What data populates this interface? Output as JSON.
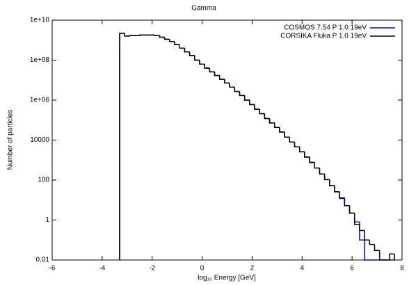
{
  "chart_data": {
    "type": "histogram",
    "title": "Gamma",
    "xlabel": "log₁₀ Energy [GeV]",
    "ylabel": "Number of particles",
    "log_y": true,
    "legend": "top-right",
    "bins": [
      -3.3,
      -3.1,
      -2.9,
      -2.7,
      -2.5,
      -2.3,
      -2.1,
      -1.9,
      -1.7,
      -1.5,
      -1.3,
      -1.1,
      -0.9,
      -0.7,
      -0.5,
      -0.3,
      -0.1,
      0.1,
      0.3,
      0.5,
      0.7,
      0.9,
      1.1,
      1.3,
      1.5,
      1.7,
      1.9,
      2.1,
      2.3,
      2.5,
      2.7,
      2.9,
      3.1,
      3.3,
      3.5,
      3.7,
      3.9,
      4.1,
      4.3,
      4.5,
      4.7,
      4.9,
      5.1,
      5.3,
      5.5,
      5.7,
      5.9,
      6.1,
      6.3,
      6.5,
      6.7,
      6.9,
      7.1,
      7.3,
      7.5,
      7.7
    ],
    "series": [
      {
        "name": "COSMOS 7.54 P 1.0 19eV",
        "color": "#0000ff",
        "values": [
          2200000000.0,
          1600000000.0,
          1700000000.0,
          1700000000.0,
          1800000000.0,
          1800000000.0,
          1800000000.0,
          1700000000.0,
          1400000000.0,
          1100000000.0,
          850000000.0,
          600000000.0,
          400000000.0,
          260000000.0,
          170000000.0,
          100000000.0,
          63000000.0,
          40000000.0,
          26000000.0,
          17000000.0,
          11000000.0,
          7200000.0,
          4500000.0,
          2700000.0,
          1700000.0,
          1000000.0,
          600000.0,
          350000.0,
          210000.0,
          120000.0,
          72000.0,
          43000.0,
          25000.0,
          14000.0,
          8000,
          4600,
          2600,
          1400,
          780,
          400,
          200,
          105,
          52,
          26,
          13,
          5.2,
          2.2,
          0.8,
          0.1,
          0,
          0,
          0,
          0,
          0,
          0
        ]
      },
      {
        "name": "CORSIKA Fluka P 1.0 19eV",
        "color": "#000000",
        "values": [
          2200000000.0,
          1600000000.0,
          1700000000.0,
          1700000000.0,
          1800000000.0,
          1800000000.0,
          1800000000.0,
          1700000000.0,
          1400000000.0,
          1100000000.0,
          850000000.0,
          600000000.0,
          400000000.0,
          260000000.0,
          170000000.0,
          100000000.0,
          63000000.0,
          40000000.0,
          26000000.0,
          17000000.0,
          11000000.0,
          7200000.0,
          4500000.0,
          2700000.0,
          1700000.0,
          1000000.0,
          600000.0,
          350000.0,
          210000.0,
          120000.0,
          72000.0,
          43000.0,
          25000.0,
          14000.0,
          8000,
          4600,
          2600,
          1400,
          740,
          400,
          200,
          105,
          52,
          26,
          12,
          5.2,
          2.2,
          0.6,
          0.3,
          0.1,
          0.06,
          0.03,
          0,
          0,
          0.02
        ]
      }
    ],
    "xlim": [
      -6,
      8
    ],
    "xticks": [
      -6,
      -4,
      -2,
      0,
      2,
      4,
      6,
      8
    ],
    "ylim": [
      0.01,
      10000000000.0
    ],
    "yticks": [
      0.01,
      1,
      100,
      10000,
      {
        "value": 1000000,
        "label": "1e+06"
      },
      {
        "value": 100000000,
        "label": "1e+08"
      },
      {
        "value": 10000000000,
        "label": "1e+10"
      }
    ]
  }
}
